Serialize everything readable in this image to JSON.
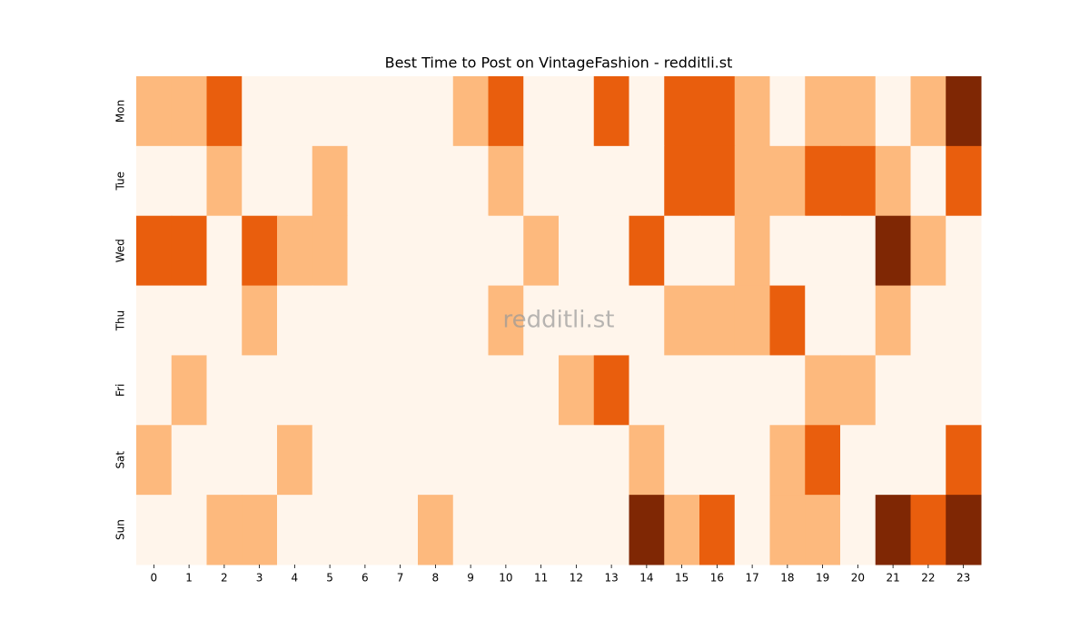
{
  "chart_data": {
    "type": "heatmap",
    "title": "Best Time to Post on VintageFashion - redditli.st",
    "watermark": "redditli.st",
    "x": [
      0,
      1,
      2,
      3,
      4,
      5,
      6,
      7,
      8,
      9,
      10,
      11,
      12,
      13,
      14,
      15,
      16,
      17,
      18,
      19,
      20,
      21,
      22,
      23
    ],
    "categories": [
      "Mon",
      "Tue",
      "Wed",
      "Thu",
      "Fri",
      "Sat",
      "Sun"
    ],
    "colors": [
      "#fff5eb",
      "#fdb97d",
      "#e95e0d",
      "#7f2704"
    ],
    "z": [
      [
        1,
        1,
        2,
        0,
        0,
        0,
        0,
        0,
        0,
        1,
        2,
        0,
        0,
        2,
        0,
        2,
        2,
        1,
        0,
        1,
        1,
        0,
        1,
        3
      ],
      [
        0,
        0,
        1,
        0,
        0,
        1,
        0,
        0,
        0,
        0,
        1,
        0,
        0,
        0,
        0,
        2,
        2,
        1,
        1,
        2,
        2,
        1,
        0,
        2
      ],
      [
        2,
        2,
        0,
        2,
        1,
        1,
        0,
        0,
        0,
        0,
        0,
        1,
        0,
        0,
        2,
        0,
        0,
        1,
        0,
        0,
        0,
        3,
        1,
        0
      ],
      [
        0,
        0,
        0,
        1,
        0,
        0,
        0,
        0,
        0,
        0,
        1,
        0,
        0,
        0,
        0,
        1,
        1,
        1,
        2,
        0,
        0,
        1,
        0,
        0
      ],
      [
        0,
        1,
        0,
        0,
        0,
        0,
        0,
        0,
        0,
        0,
        0,
        0,
        1,
        2,
        0,
        0,
        0,
        0,
        0,
        1,
        1,
        0,
        0,
        0
      ],
      [
        1,
        0,
        0,
        0,
        1,
        0,
        0,
        0,
        0,
        0,
        0,
        0,
        0,
        0,
        1,
        0,
        0,
        0,
        1,
        2,
        0,
        0,
        0,
        2
      ],
      [
        0,
        0,
        1,
        1,
        0,
        0,
        0,
        0,
        1,
        0,
        0,
        0,
        0,
        0,
        3,
        1,
        2,
        0,
        1,
        1,
        0,
        3,
        2,
        3
      ]
    ]
  }
}
